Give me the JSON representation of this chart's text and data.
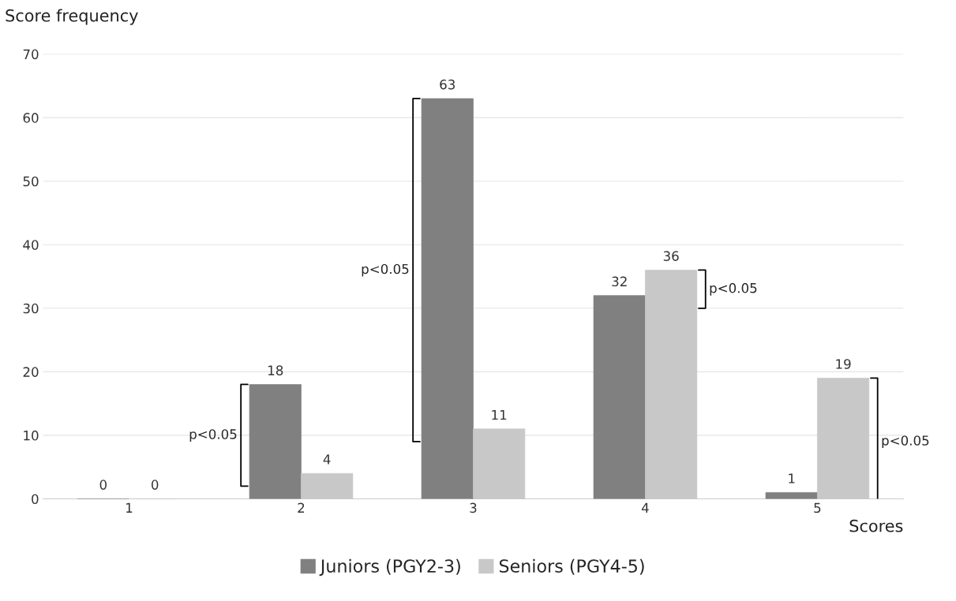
{
  "chart_data": {
    "type": "bar",
    "ylabel": "Score frequency",
    "xlabel": "Scores",
    "categories": [
      "1",
      "2",
      "3",
      "4",
      "5"
    ],
    "series": [
      {
        "name": "Juniors (PGY2-3)",
        "color": "#808080",
        "values": [
          0,
          18,
          63,
          32,
          1
        ]
      },
      {
        "name": "Seniors (PGY4-5)",
        "color": "#c8c8c8",
        "values": [
          0,
          4,
          11,
          36,
          19
        ]
      }
    ],
    "ylim": [
      0,
      70
    ],
    "yticks": [
      0,
      10,
      20,
      30,
      40,
      50,
      60,
      70
    ],
    "grid": "y",
    "legend": "bottom",
    "data_labels": true,
    "annotations": [
      "p<0.05",
      "p<0.05",
      "p<0.05",
      "p<0.05"
    ]
  }
}
